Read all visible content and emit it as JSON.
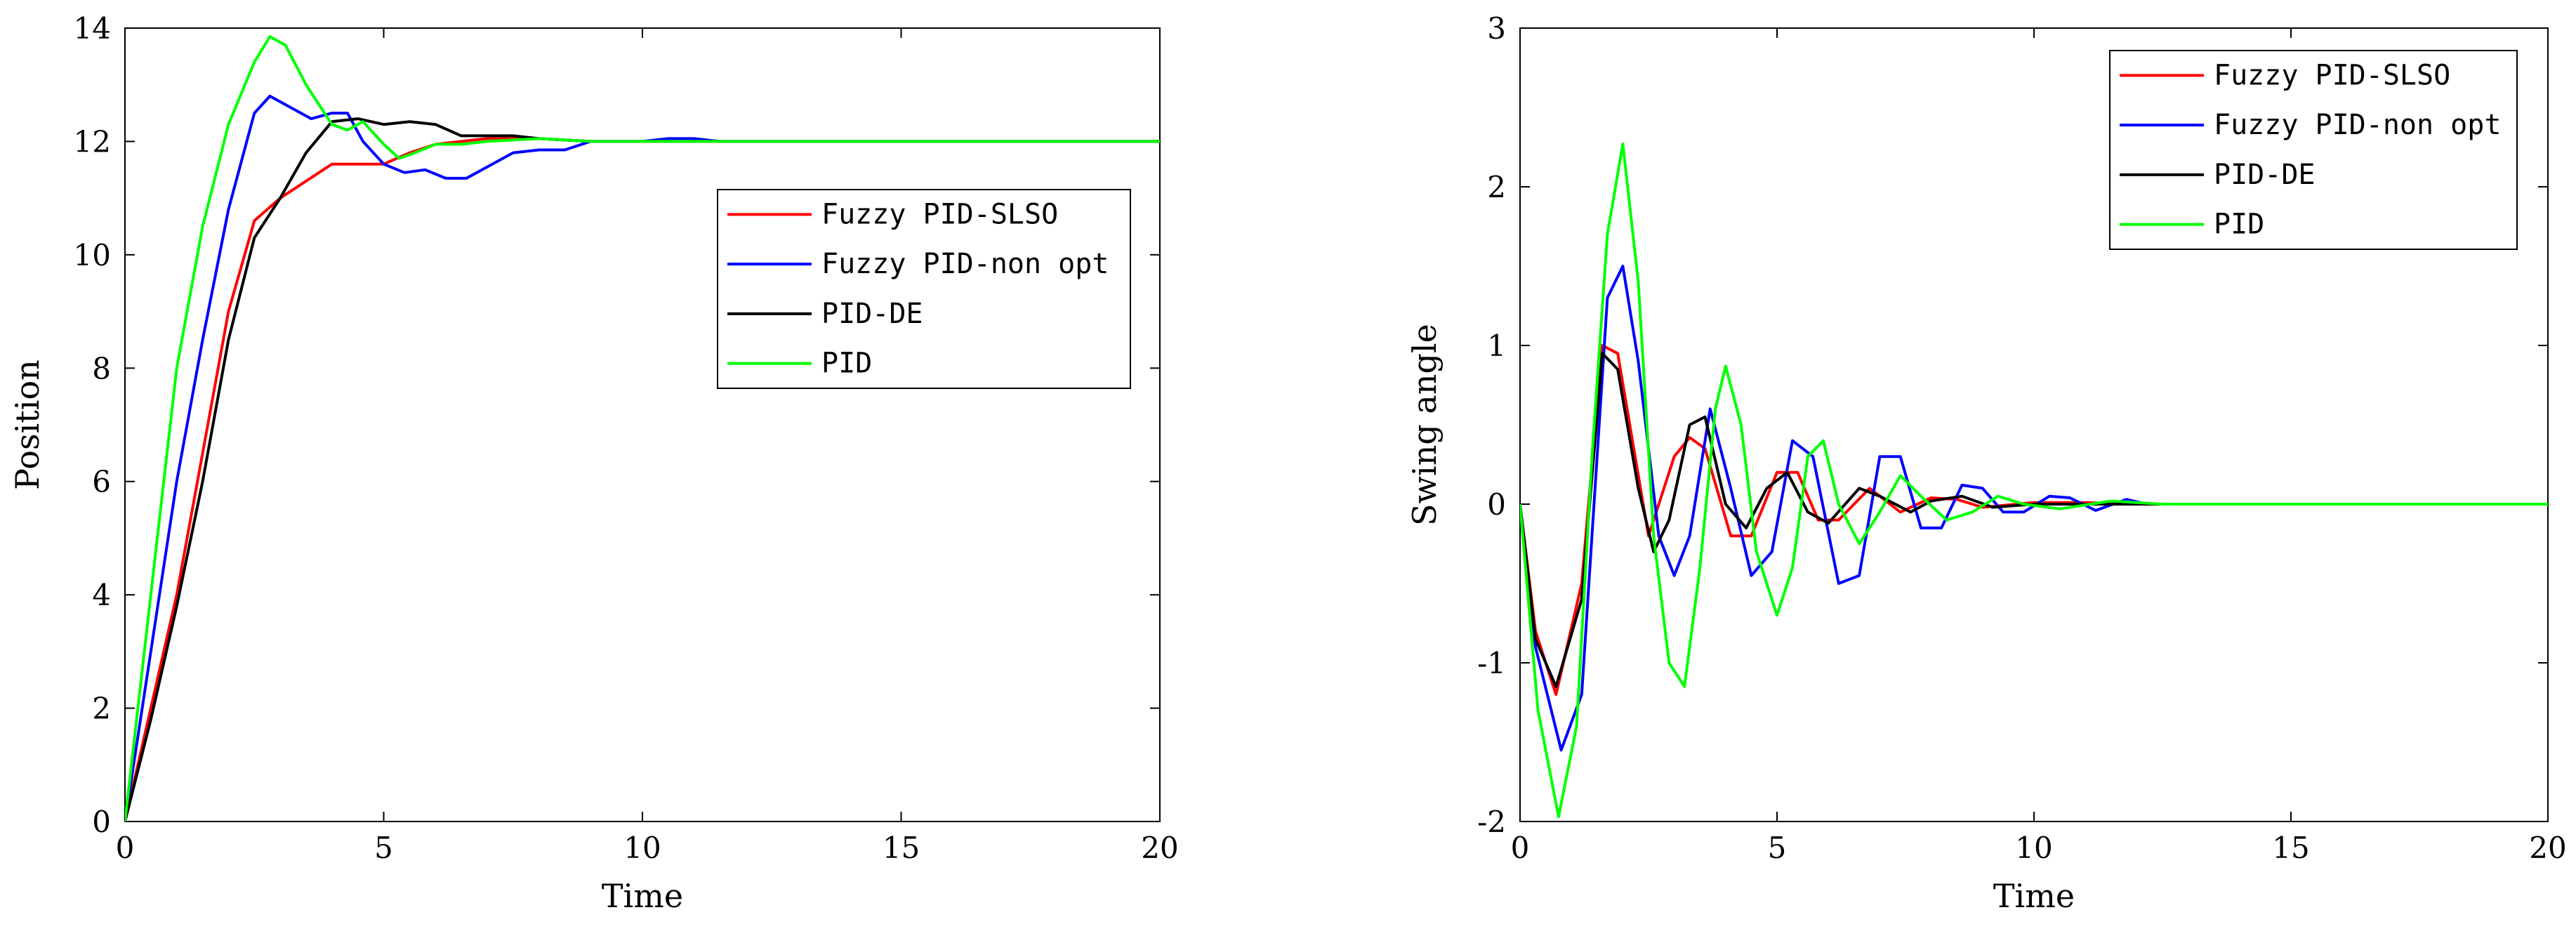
{
  "colors": {
    "Fuzzy PID-SLSO": "#ff0000",
    "Fuzzy PID-non opt": "#0000ff",
    "PID-DE": "#000000",
    "PID": "#00ff00"
  },
  "chart_data": [
    {
      "type": "line",
      "title": "",
      "xlabel": "Time",
      "ylabel": "Position",
      "xlim": [
        0,
        20
      ],
      "ylim": [
        0,
        14
      ],
      "xticks": [
        0,
        5,
        10,
        15,
        20
      ],
      "xtick_labels": [
        "0",
        "5",
        "10",
        "15",
        "20"
      ],
      "yticks": [
        0,
        2,
        4,
        6,
        8,
        10,
        12,
        14
      ],
      "ytick_labels": [
        "0",
        "2",
        "4",
        "6",
        "8",
        "10",
        "12",
        "14"
      ],
      "grid": false,
      "legend": "center-right",
      "series": [
        {
          "name": "Fuzzy PID-SLSO",
          "x": [
            0,
            0.5,
            1,
            1.5,
            2,
            2.5,
            3,
            3.5,
            4,
            4.5,
            5,
            5.5,
            6,
            6.5,
            7,
            8,
            9,
            10,
            11,
            12,
            20
          ],
          "y": [
            0,
            2.0,
            4.0,
            6.5,
            9.0,
            10.6,
            11.0,
            11.3,
            11.6,
            11.6,
            11.6,
            11.8,
            11.95,
            12.0,
            12.05,
            12.05,
            12.0,
            12.0,
            12.0,
            12.0,
            12.0
          ]
        },
        {
          "name": "Fuzzy PID-non opt",
          "x": [
            0,
            0.5,
            1,
            1.5,
            2,
            2.5,
            2.8,
            3.2,
            3.6,
            4,
            4.3,
            4.6,
            5,
            5.4,
            5.8,
            6.2,
            6.6,
            7,
            7.5,
            8,
            8.5,
            9,
            9.5,
            10,
            10.5,
            11,
            11.5,
            12,
            20
          ],
          "y": [
            0,
            3.0,
            6.0,
            8.5,
            10.8,
            12.5,
            12.8,
            12.6,
            12.4,
            12.5,
            12.5,
            12.0,
            11.6,
            11.45,
            11.5,
            11.35,
            11.35,
            11.55,
            11.8,
            11.85,
            11.85,
            12.0,
            12.0,
            12.0,
            12.05,
            12.05,
            12.0,
            12.0,
            12.0
          ]
        },
        {
          "name": "PID-DE",
          "x": [
            0,
            0.5,
            1,
            1.5,
            2,
            2.5,
            3,
            3.5,
            4,
            4.5,
            5,
            5.5,
            6,
            6.5,
            7,
            7.5,
            8,
            9,
            10,
            20
          ],
          "y": [
            0,
            1.8,
            3.8,
            6.0,
            8.5,
            10.3,
            11.0,
            11.8,
            12.35,
            12.4,
            12.3,
            12.35,
            12.3,
            12.1,
            12.1,
            12.1,
            12.05,
            12.0,
            12.0,
            12.0
          ]
        },
        {
          "name": "PID",
          "x": [
            0,
            0.5,
            1,
            1.5,
            2,
            2.5,
            2.8,
            3.1,
            3.5,
            4,
            4.3,
            4.6,
            5,
            5.3,
            5.6,
            6,
            6.5,
            7,
            8,
            9,
            20
          ],
          "y": [
            0,
            4.0,
            8.0,
            10.5,
            12.3,
            13.4,
            13.85,
            13.7,
            13.0,
            12.3,
            12.2,
            12.35,
            11.95,
            11.7,
            11.8,
            11.95,
            11.95,
            12.0,
            12.05,
            12.0,
            12.0
          ]
        }
      ]
    },
    {
      "type": "line",
      "title": "",
      "xlabel": "Time",
      "ylabel": "Swing angle",
      "xlim": [
        0,
        20
      ],
      "ylim": [
        -2,
        3
      ],
      "xticks": [
        0,
        5,
        10,
        15,
        20
      ],
      "xtick_labels": [
        "0",
        "5",
        "10",
        "15",
        "20"
      ],
      "yticks": [
        -2,
        -1,
        0,
        1,
        2,
        3
      ],
      "ytick_labels": [
        "-2",
        "-1",
        "0",
        "1",
        "2",
        "3"
      ],
      "grid": false,
      "legend": "top-right",
      "series": [
        {
          "name": "Fuzzy PID-SLSO",
          "x": [
            0,
            0.3,
            0.7,
            1.2,
            1.6,
            1.9,
            2.5,
            3.0,
            3.3,
            3.6,
            4.1,
            4.5,
            5.0,
            5.4,
            5.8,
            6.2,
            6.8,
            7.4,
            8.0,
            8.5,
            9.0,
            10,
            11,
            12,
            20
          ],
          "y": [
            0,
            -0.8,
            -1.2,
            -0.5,
            1.0,
            0.95,
            -0.2,
            0.3,
            0.42,
            0.35,
            -0.2,
            -0.2,
            0.2,
            0.2,
            -0.1,
            -0.1,
            0.1,
            -0.05,
            0.04,
            0.03,
            -0.02,
            0.01,
            0.01,
            0.0,
            0.0
          ]
        },
        {
          "name": "Fuzzy PID-non opt",
          "x": [
            0,
            0.3,
            0.8,
            1.2,
            1.7,
            2.0,
            2.3,
            2.7,
            3.0,
            3.3,
            3.7,
            4.1,
            4.5,
            4.9,
            5.3,
            5.7,
            6.2,
            6.6,
            7.0,
            7.4,
            7.8,
            8.2,
            8.6,
            9.0,
            9.4,
            9.8,
            10.3,
            10.7,
            11.2,
            11.8,
            12.2,
            13,
            20
          ],
          "y": [
            0,
            -0.9,
            -1.55,
            -1.2,
            1.3,
            1.5,
            0.9,
            -0.2,
            -0.45,
            -0.2,
            0.6,
            0.1,
            -0.45,
            -0.3,
            0.4,
            0.3,
            -0.5,
            -0.45,
            0.3,
            0.3,
            -0.15,
            -0.15,
            0.12,
            0.1,
            -0.05,
            -0.05,
            0.05,
            0.04,
            -0.04,
            0.03,
            0.0,
            0.0,
            0.0
          ]
        },
        {
          "name": "PID-DE",
          "x": [
            0,
            0.3,
            0.7,
            1.2,
            1.6,
            1.9,
            2.3,
            2.6,
            2.9,
            3.3,
            3.6,
            4.0,
            4.4,
            4.8,
            5.2,
            5.6,
            6.0,
            6.6,
            7.0,
            7.6,
            8.0,
            8.6,
            9.2,
            10,
            11,
            20
          ],
          "y": [
            0,
            -0.85,
            -1.15,
            -0.6,
            0.95,
            0.85,
            0.1,
            -0.3,
            -0.1,
            0.5,
            0.55,
            0.0,
            -0.15,
            0.1,
            0.2,
            -0.05,
            -0.12,
            0.1,
            0.05,
            -0.05,
            0.02,
            0.05,
            -0.02,
            0.0,
            0.0,
            0.0
          ]
        },
        {
          "name": "PID",
          "x": [
            0,
            0.35,
            0.75,
            1.1,
            1.4,
            1.7,
            2.0,
            2.3,
            2.6,
            2.9,
            3.2,
            3.5,
            3.8,
            4.0,
            4.3,
            4.6,
            5.0,
            5.3,
            5.6,
            5.9,
            6.2,
            6.6,
            7.0,
            7.4,
            7.8,
            8.3,
            8.8,
            9.3,
            9.8,
            10.5,
            11.5,
            12.5,
            20
          ],
          "y": [
            0,
            -1.3,
            -1.97,
            -1.4,
            0.3,
            1.7,
            2.27,
            1.4,
            -0.2,
            -1.0,
            -1.15,
            -0.4,
            0.6,
            0.87,
            0.5,
            -0.3,
            -0.7,
            -0.4,
            0.3,
            0.4,
            0.0,
            -0.25,
            -0.05,
            0.18,
            0.05,
            -0.1,
            -0.05,
            0.05,
            0.0,
            -0.03,
            0.02,
            0.0,
            0.0
          ]
        }
      ]
    }
  ]
}
